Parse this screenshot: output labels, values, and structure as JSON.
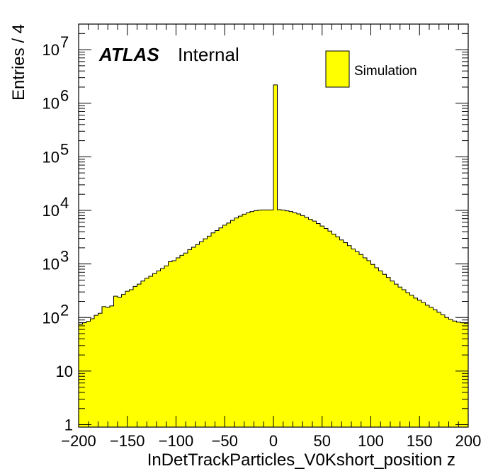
{
  "chart_data": {
    "type": "bar",
    "xlabel": "InDetTrackParticles_V0Kshort_position z",
    "ylabel": "Entries / 4",
    "xlim": [
      -200,
      200
    ],
    "ylim": [
      0.9,
      30000000
    ],
    "yscale": "log",
    "bin_width": 4,
    "fill_color": "#ffff00",
    "edge_color": "#000000",
    "x_ticks": [
      "−200",
      "−150",
      "−100",
      "−50",
      "0",
      "50",
      "100",
      "150",
      "200"
    ],
    "y_ticks": [
      {
        "base": "1",
        "exp": ""
      },
      {
        "base": "10",
        "exp": ""
      },
      {
        "base": "10",
        "exp": "2"
      },
      {
        "base": "10",
        "exp": "3"
      },
      {
        "base": "10",
        "exp": "4"
      },
      {
        "base": "10",
        "exp": "5"
      },
      {
        "base": "10",
        "exp": "6"
      },
      {
        "base": "10",
        "exp": "7"
      }
    ],
    "annotation": {
      "atlas": "ATLAS",
      "status": "Internal"
    },
    "legend": {
      "label": "Simulation",
      "position": "top-right"
    },
    "x": [
      -198,
      -194,
      -190,
      -186,
      -182,
      -178,
      -174,
      -170,
      -166,
      -162,
      -158,
      -154,
      -150,
      -146,
      -142,
      -138,
      -134,
      -130,
      -126,
      -122,
      -118,
      -114,
      -110,
      -106,
      -102,
      -98,
      -94,
      -90,
      -86,
      -82,
      -78,
      -74,
      -70,
      -66,
      -62,
      -58,
      -54,
      -50,
      -46,
      -42,
      -38,
      -34,
      -30,
      -26,
      -22,
      -18,
      -14,
      -10,
      -6,
      -2,
      2,
      6,
      10,
      14,
      18,
      22,
      26,
      30,
      34,
      38,
      42,
      46,
      50,
      54,
      58,
      62,
      66,
      70,
      74,
      78,
      82,
      86,
      90,
      94,
      98,
      102,
      106,
      110,
      114,
      118,
      122,
      126,
      130,
      134,
      138,
      142,
      146,
      150,
      154,
      158,
      162,
      166,
      170,
      174,
      178,
      182,
      186,
      190,
      194,
      198
    ],
    "values": [
      75,
      80,
      85,
      95,
      110,
      120,
      160,
      155,
      165,
      250,
      240,
      270,
      310,
      330,
      380,
      420,
      480,
      540,
      590,
      660,
      740,
      820,
      920,
      1100,
      1150,
      1300,
      1450,
      1600,
      1850,
      2050,
      2300,
      2600,
      2950,
      3300,
      3800,
      4200,
      4700,
      5300,
      5800,
      6500,
      7200,
      7800,
      8500,
      9000,
      9500,
      9900,
      10100,
      10200,
      10200,
      10200,
      2200000,
      10300,
      10100,
      9800,
      9500,
      9000,
      8600,
      8000,
      7400,
      6800,
      6300,
      5700,
      5100,
      4600,
      4100,
      3600,
      3200,
      2800,
      2500,
      2200,
      1900,
      1700,
      1500,
      1300,
      1150,
      980,
      850,
      740,
      640,
      560,
      480,
      420,
      370,
      330,
      290,
      260,
      230,
      210,
      190,
      170,
      155,
      140,
      125,
      112,
      100,
      92,
      86,
      82,
      80,
      78
    ]
  }
}
